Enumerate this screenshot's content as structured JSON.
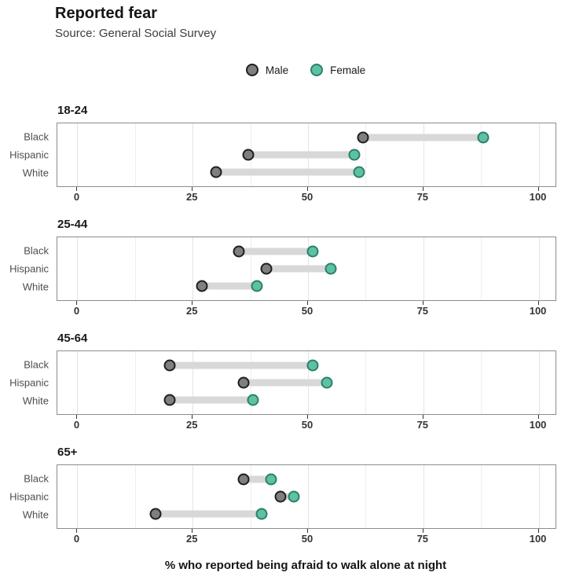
{
  "header": {
    "title": "Reported fear",
    "subtitle": "Source: General Social Survey"
  },
  "legend": {
    "items": [
      {
        "label": "Male",
        "fill": "#7f7f7f",
        "stroke": "#1f1f1f"
      },
      {
        "label": "Female",
        "fill": "#5dc2a3",
        "stroke": "#2d7f68"
      }
    ]
  },
  "axis": {
    "ticks": [
      0,
      25,
      50,
      75,
      100
    ],
    "minor_gridlines": [
      12.5,
      37.5,
      62.5,
      87.5
    ]
  },
  "chart_data": {
    "type": "dumbbell",
    "title": "Reported fear",
    "subtitle": "Source: General Social Survey",
    "xlabel": "% who reported being afraid to walk alone at night",
    "xlim": [
      0,
      100
    ],
    "x_ticks": [
      0,
      25,
      50,
      75,
      100
    ],
    "legend": [
      "Male",
      "Female"
    ],
    "legend_position": "top-center",
    "grid": true,
    "panels": [
      {
        "age_group": "18-24",
        "rows": [
          {
            "category": "Black",
            "male": 62,
            "female": 88
          },
          {
            "category": "Hispanic",
            "male": 37,
            "female": 60
          },
          {
            "category": "White",
            "male": 30,
            "female": 61
          }
        ]
      },
      {
        "age_group": "25-44",
        "rows": [
          {
            "category": "Black",
            "male": 35,
            "female": 51
          },
          {
            "category": "Hispanic",
            "male": 41,
            "female": 55
          },
          {
            "category": "White",
            "male": 27,
            "female": 39
          }
        ]
      },
      {
        "age_group": "45-64",
        "rows": [
          {
            "category": "Black",
            "male": 20,
            "female": 51
          },
          {
            "category": "Hispanic",
            "male": 36,
            "female": 54
          },
          {
            "category": "White",
            "male": 20,
            "female": 38
          }
        ]
      },
      {
        "age_group": "65+",
        "rows": [
          {
            "category": "Black",
            "male": 36,
            "female": 42
          },
          {
            "category": "Hispanic",
            "male": 44,
            "female": 47
          },
          {
            "category": "White",
            "male": 17,
            "female": 40
          }
        ]
      }
    ],
    "colors": {
      "male_fill": "#7f7f7f",
      "male_stroke": "#1f1f1f",
      "female_fill": "#5dc2a3",
      "female_stroke": "#2d7f68",
      "bar": "#d8d8d8"
    }
  }
}
